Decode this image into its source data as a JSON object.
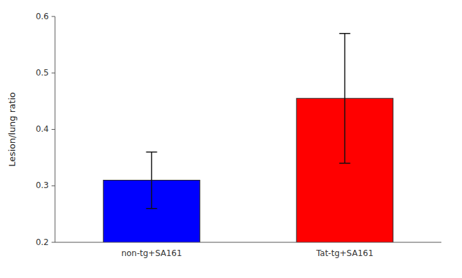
{
  "chart_data": {
    "type": "bar",
    "categories": [
      "non-tg+SA161",
      "Tat-tg+SA161"
    ],
    "values": [
      0.31,
      0.455
    ],
    "errors": [
      0.05,
      0.115
    ],
    "colors": [
      "#0000ff",
      "#ff0000"
    ],
    "ylabel": "Lesion/lung ratio",
    "ylim": [
      0.2,
      0.6
    ],
    "yticks": [
      0.2,
      0.3,
      0.4,
      0.5,
      0.6
    ],
    "grid": false
  }
}
